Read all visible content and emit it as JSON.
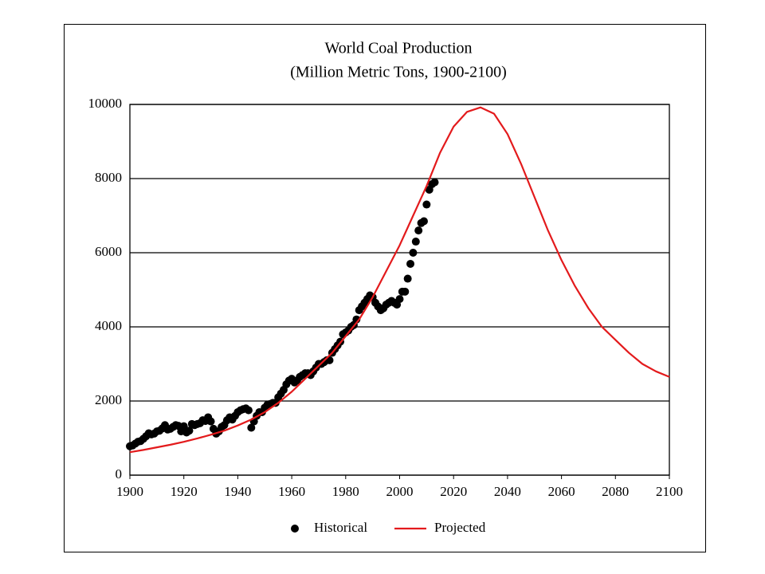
{
  "chart_data": {
    "type": "line",
    "title": "World Coal Production",
    "subtitle": "(Million  Metric Tons, 1900-2100)",
    "xlim": [
      1900,
      2100
    ],
    "xticks": [
      1900,
      1920,
      1940,
      1960,
      1980,
      2000,
      2020,
      2040,
      2060,
      2080,
      2100
    ],
    "ylim": [
      0,
      10000
    ],
    "yticks": [
      0,
      2000,
      4000,
      6000,
      8000,
      10000
    ],
    "grid": true,
    "legend": "bottom",
    "series": [
      {
        "name": "Historical",
        "color": "#000000",
        "style": "markers",
        "x": [
          1900,
          1901,
          1902,
          1903,
          1904,
          1905,
          1906,
          1907,
          1908,
          1909,
          1910,
          1911,
          1912,
          1913,
          1914,
          1915,
          1916,
          1917,
          1918,
          1919,
          1920,
          1921,
          1922,
          1923,
          1924,
          1925,
          1926,
          1927,
          1928,
          1929,
          1930,
          1931,
          1932,
          1933,
          1934,
          1935,
          1936,
          1937,
          1938,
          1939,
          1940,
          1941,
          1942,
          1943,
          1944,
          1945,
          1946,
          1947,
          1948,
          1949,
          1950,
          1951,
          1952,
          1953,
          1954,
          1955,
          1956,
          1957,
          1958,
          1959,
          1960,
          1961,
          1962,
          1963,
          1964,
          1965,
          1966,
          1967,
          1968,
          1969,
          1970,
          1971,
          1972,
          1973,
          1974,
          1975,
          1976,
          1977,
          1978,
          1979,
          1980,
          1981,
          1982,
          1983,
          1984,
          1985,
          1986,
          1987,
          1988,
          1989,
          1990,
          1991,
          1992,
          1993,
          1994,
          1995,
          1996,
          1997,
          1998,
          1999,
          2000,
          2001,
          2002,
          2003,
          2004,
          2005,
          2006,
          2007,
          2008,
          2009,
          2010,
          2011,
          2012,
          2013
        ],
        "values": [
          780,
          800,
          850,
          900,
          920,
          980,
          1050,
          1130,
          1100,
          1120,
          1180,
          1200,
          1260,
          1350,
          1230,
          1250,
          1300,
          1350,
          1330,
          1180,
          1320,
          1150,
          1200,
          1380,
          1350,
          1380,
          1400,
          1480,
          1460,
          1560,
          1450,
          1250,
          1120,
          1180,
          1300,
          1350,
          1480,
          1560,
          1500,
          1600,
          1700,
          1750,
          1780,
          1800,
          1750,
          1280,
          1450,
          1600,
          1700,
          1700,
          1820,
          1900,
          1920,
          1950,
          1950,
          2100,
          2200,
          2300,
          2450,
          2550,
          2600,
          2500,
          2550,
          2650,
          2700,
          2750,
          2750,
          2700,
          2800,
          2900,
          3000,
          3000,
          3050,
          3100,
          3100,
          3300,
          3400,
          3500,
          3600,
          3800,
          3850,
          3900,
          4000,
          4050,
          4200,
          4450,
          4550,
          4650,
          4750,
          4850,
          4800,
          4650,
          4550,
          4450,
          4500,
          4600,
          4650,
          4700,
          4650,
          4600,
          4750,
          4950,
          4950,
          5300,
          5700,
          6000,
          6300,
          6600,
          6800,
          6850,
          7300,
          7700,
          7850,
          7900
        ]
      },
      {
        "name": "Projected",
        "color": "#e31a1c",
        "style": "line",
        "x": [
          1900,
          1905,
          1910,
          1915,
          1920,
          1925,
          1930,
          1935,
          1940,
          1945,
          1950,
          1955,
          1960,
          1965,
          1970,
          1975,
          1980,
          1985,
          1990,
          1995,
          2000,
          2005,
          2010,
          2015,
          2020,
          2025,
          2030,
          2035,
          2040,
          2045,
          2050,
          2055,
          2060,
          2065,
          2070,
          2075,
          2080,
          2085,
          2090,
          2095,
          2100
        ],
        "values": [
          620,
          680,
          750,
          820,
          900,
          990,
          1090,
          1200,
          1340,
          1500,
          1700,
          1950,
          2250,
          2600,
          2950,
          3300,
          3750,
          4200,
          4800,
          5500,
          6200,
          7000,
          7800,
          8700,
          9400,
          9800,
          9920,
          9750,
          9200,
          8400,
          7500,
          6600,
          5800,
          5100,
          4500,
          4000,
          3650,
          3300,
          3000,
          2800,
          2650
        ]
      }
    ]
  }
}
